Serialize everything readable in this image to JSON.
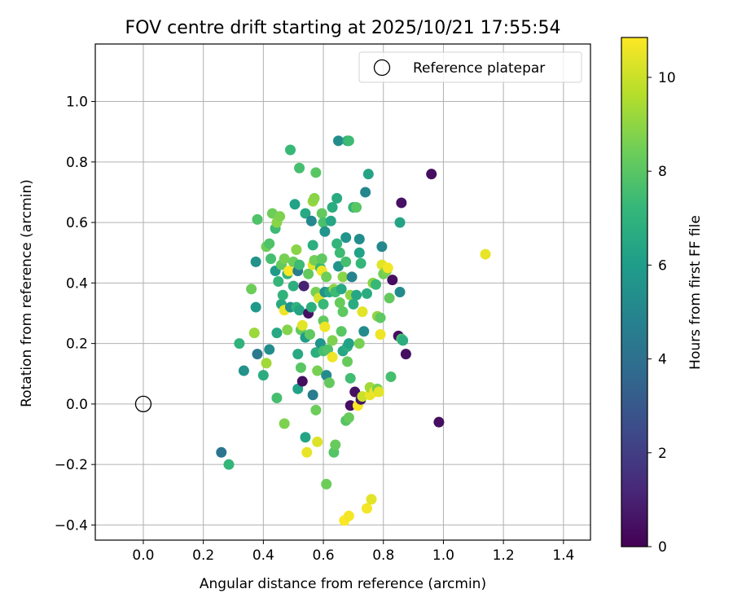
{
  "chart_data": {
    "type": "scatter",
    "title": "FOV centre drift starting at 2025/10/21 17:55:54",
    "xlabel": "Angular distance from reference (arcmin)",
    "ylabel": "Rotation from reference (arcmin)",
    "xlim": [
      -0.16,
      1.49
    ],
    "ylim": [
      -0.45,
      1.19
    ],
    "xticks": [
      0.0,
      0.2,
      0.4,
      0.6,
      0.8,
      1.0,
      1.2,
      1.4
    ],
    "xtick_labels": [
      "0.0",
      "0.2",
      "0.4",
      "0.6",
      "0.8",
      "1.0",
      "1.2",
      "1.4"
    ],
    "yticks": [
      -0.4,
      -0.2,
      0.0,
      0.2,
      0.4,
      0.6,
      0.8,
      1.0
    ],
    "ytick_labels": [
      "−0.4",
      "−0.2",
      "0.0",
      "0.2",
      "0.4",
      "0.6",
      "0.8",
      "1.0"
    ],
    "grid": true,
    "legend": {
      "position": "top-right",
      "entries": [
        "Reference platepar"
      ]
    },
    "reference_point": {
      "x": 0.0,
      "y": 0.0,
      "marker": "open-circle",
      "label": "Reference platepar"
    },
    "colorbar": {
      "label": "Hours from first FF file",
      "min": 0,
      "max": 10.85,
      "ticks": [
        0,
        2,
        4,
        6,
        8,
        10
      ],
      "tick_labels": [
        "0",
        "2",
        "4",
        "6",
        "8",
        "10"
      ],
      "colormap": "viridis"
    },
    "colormap_stops": [
      "#440154",
      "#482878",
      "#3e4989",
      "#31688e",
      "#26828e",
      "#1f9e89",
      "#35b779",
      "#6ece58",
      "#b5de2b",
      "#fde725"
    ],
    "point_color_encoding": "hours",
    "points": [
      {
        "x": 0.26,
        "y": -0.16,
        "h": 4.2
      },
      {
        "x": 0.285,
        "y": -0.2,
        "h": 7.2
      },
      {
        "x": 0.32,
        "y": 0.2,
        "h": 7.0
      },
      {
        "x": 0.335,
        "y": 0.11,
        "h": 5.5
      },
      {
        "x": 0.36,
        "y": 0.38,
        "h": 8.4
      },
      {
        "x": 0.37,
        "y": 0.235,
        "h": 9.2
      },
      {
        "x": 0.375,
        "y": 0.47,
        "h": 5.5
      },
      {
        "x": 0.38,
        "y": 0.61,
        "h": 7.8
      },
      {
        "x": 0.38,
        "y": 0.165,
        "h": 4.4
      },
      {
        "x": 0.375,
        "y": 0.32,
        "h": 5.8
      },
      {
        "x": 0.4,
        "y": 0.095,
        "h": 6.7
      },
      {
        "x": 0.41,
        "y": 0.52,
        "h": 8.4
      },
      {
        "x": 0.41,
        "y": 0.135,
        "h": 9.3
      },
      {
        "x": 0.42,
        "y": 0.53,
        "h": 7.8
      },
      {
        "x": 0.42,
        "y": 0.18,
        "h": 5.3
      },
      {
        "x": 0.425,
        "y": 0.48,
        "h": 7.6
      },
      {
        "x": 0.43,
        "y": 0.63,
        "h": 8.4
      },
      {
        "x": 0.44,
        "y": 0.58,
        "h": 7.4
      },
      {
        "x": 0.44,
        "y": 0.44,
        "h": 5.8
      },
      {
        "x": 0.445,
        "y": 0.6,
        "h": 8.9
      },
      {
        "x": 0.445,
        "y": 0.235,
        "h": 6.5
      },
      {
        "x": 0.445,
        "y": 0.02,
        "h": 7.6
      },
      {
        "x": 0.45,
        "y": 0.405,
        "h": 7.2
      },
      {
        "x": 0.455,
        "y": 0.62,
        "h": 8.7
      },
      {
        "x": 0.46,
        "y": 0.46,
        "h": 8.2
      },
      {
        "x": 0.46,
        "y": 0.33,
        "h": 6.6
      },
      {
        "x": 0.465,
        "y": 0.36,
        "h": 7.0
      },
      {
        "x": 0.47,
        "y": 0.48,
        "h": 8.6
      },
      {
        "x": 0.47,
        "y": 0.31,
        "h": 10.6
      },
      {
        "x": 0.47,
        "y": -0.065,
        "h": 8.7
      },
      {
        "x": 0.48,
        "y": 0.43,
        "h": 7.1
      },
      {
        "x": 0.48,
        "y": 0.245,
        "h": 8.8
      },
      {
        "x": 0.485,
        "y": 0.44,
        "h": 10.8
      },
      {
        "x": 0.49,
        "y": 0.84,
        "h": 7.3
      },
      {
        "x": 0.49,
        "y": 0.32,
        "h": 5.5
      },
      {
        "x": 0.5,
        "y": 0.47,
        "h": 8.4
      },
      {
        "x": 0.5,
        "y": 0.39,
        "h": 6.8
      },
      {
        "x": 0.505,
        "y": 0.66,
        "h": 6.2
      },
      {
        "x": 0.51,
        "y": 0.51,
        "h": 8.9
      },
      {
        "x": 0.51,
        "y": 0.32,
        "h": 7.0
      },
      {
        "x": 0.515,
        "y": 0.44,
        "h": 4.6
      },
      {
        "x": 0.515,
        "y": 0.165,
        "h": 6.5
      },
      {
        "x": 0.515,
        "y": 0.05,
        "h": 6.2
      },
      {
        "x": 0.52,
        "y": 0.78,
        "h": 7.6
      },
      {
        "x": 0.52,
        "y": 0.46,
        "h": 7.4
      },
      {
        "x": 0.52,
        "y": 0.31,
        "h": 6.3
      },
      {
        "x": 0.525,
        "y": 0.245,
        "h": 8.2
      },
      {
        "x": 0.525,
        "y": 0.12,
        "h": 8.0
      },
      {
        "x": 0.53,
        "y": 0.26,
        "h": 10.4
      },
      {
        "x": 0.53,
        "y": 0.075,
        "h": 0.4
      },
      {
        "x": 0.535,
        "y": 0.39,
        "h": 1.0
      },
      {
        "x": 0.54,
        "y": 0.63,
        "h": 6.5
      },
      {
        "x": 0.54,
        "y": 0.22,
        "h": 6.0
      },
      {
        "x": 0.54,
        "y": -0.11,
        "h": 6.3
      },
      {
        "x": 0.545,
        "y": -0.16,
        "h": 10.5
      },
      {
        "x": 0.55,
        "y": 0.3,
        "h": 0.5
      },
      {
        "x": 0.55,
        "y": 0.43,
        "h": 8.2
      },
      {
        "x": 0.555,
        "y": 0.23,
        "h": 8.1
      },
      {
        "x": 0.56,
        "y": 0.605,
        "h": 5.1
      },
      {
        "x": 0.56,
        "y": 0.32,
        "h": 6.8
      },
      {
        "x": 0.565,
        "y": 0.46,
        "h": 10.4
      },
      {
        "x": 0.565,
        "y": 0.67,
        "h": 9.1
      },
      {
        "x": 0.565,
        "y": 0.525,
        "h": 6.8
      },
      {
        "x": 0.565,
        "y": 0.03,
        "h": 4.5
      },
      {
        "x": 0.57,
        "y": 0.68,
        "h": 8.9
      },
      {
        "x": 0.57,
        "y": 0.475,
        "h": 8.5
      },
      {
        "x": 0.575,
        "y": 0.37,
        "h": 8.6
      },
      {
        "x": 0.575,
        "y": 0.765,
        "h": 8.0
      },
      {
        "x": 0.575,
        "y": 0.17,
        "h": 6.8
      },
      {
        "x": 0.575,
        "y": -0.02,
        "h": 8.4
      },
      {
        "x": 0.58,
        "y": 0.11,
        "h": 8.6
      },
      {
        "x": 0.58,
        "y": -0.125,
        "h": 10.3
      },
      {
        "x": 0.585,
        "y": 0.35,
        "h": 10.2
      },
      {
        "x": 0.59,
        "y": 0.45,
        "h": 7.3
      },
      {
        "x": 0.59,
        "y": 0.2,
        "h": 5.6
      },
      {
        "x": 0.595,
        "y": 0.44,
        "h": 10.6
      },
      {
        "x": 0.595,
        "y": 0.63,
        "h": 8.2
      },
      {
        "x": 0.595,
        "y": 0.48,
        "h": 8.1
      },
      {
        "x": 0.6,
        "y": 0.33,
        "h": 7.3
      },
      {
        "x": 0.6,
        "y": 0.275,
        "h": 8.2
      },
      {
        "x": 0.6,
        "y": 0.6,
        "h": 7.7
      },
      {
        "x": 0.6,
        "y": 0.175,
        "h": 7.6
      },
      {
        "x": 0.605,
        "y": 0.57,
        "h": 5.6
      },
      {
        "x": 0.605,
        "y": 0.37,
        "h": 5.5
      },
      {
        "x": 0.605,
        "y": 0.255,
        "h": 10.6
      },
      {
        "x": 0.61,
        "y": -0.265,
        "h": 8.4
      },
      {
        "x": 0.61,
        "y": 0.42,
        "h": 8.4
      },
      {
        "x": 0.61,
        "y": 0.095,
        "h": 5.2
      },
      {
        "x": 0.615,
        "y": 0.18,
        "h": 7.8
      },
      {
        "x": 0.62,
        "y": 0.37,
        "h": 6.5
      },
      {
        "x": 0.62,
        "y": 0.07,
        "h": 8.2
      },
      {
        "x": 0.625,
        "y": 0.605,
        "h": 6.4
      },
      {
        "x": 0.63,
        "y": 0.65,
        "h": 6.7
      },
      {
        "x": 0.63,
        "y": 0.21,
        "h": 8.7
      },
      {
        "x": 0.63,
        "y": 0.155,
        "h": 10.6
      },
      {
        "x": 0.635,
        "y": 0.38,
        "h": 9.0
      },
      {
        "x": 0.635,
        "y": -0.16,
        "h": 7.9
      },
      {
        "x": 0.64,
        "y": 0.37,
        "h": 7.4
      },
      {
        "x": 0.64,
        "y": -0.135,
        "h": 8.3
      },
      {
        "x": 0.645,
        "y": 0.68,
        "h": 6.6
      },
      {
        "x": 0.645,
        "y": 0.53,
        "h": 7.1
      },
      {
        "x": 0.65,
        "y": 0.87,
        "h": 5.3
      },
      {
        "x": 0.65,
        "y": 0.455,
        "h": 5.6
      },
      {
        "x": 0.655,
        "y": 0.335,
        "h": 8.3
      },
      {
        "x": 0.655,
        "y": 0.5,
        "h": 7.4
      },
      {
        "x": 0.66,
        "y": 0.38,
        "h": 6.5
      },
      {
        "x": 0.66,
        "y": 0.24,
        "h": 8.0
      },
      {
        "x": 0.665,
        "y": 0.42,
        "h": 8.9
      },
      {
        "x": 0.665,
        "y": 0.305,
        "h": 8.1
      },
      {
        "x": 0.665,
        "y": 0.175,
        "h": 6.4
      },
      {
        "x": 0.67,
        "y": -0.385,
        "h": 10.8
      },
      {
        "x": 0.675,
        "y": 0.55,
        "h": 5.6
      },
      {
        "x": 0.675,
        "y": 0.47,
        "h": 7.6
      },
      {
        "x": 0.675,
        "y": -0.055,
        "h": 7.9
      },
      {
        "x": 0.68,
        "y": 0.87,
        "h": 6.6
      },
      {
        "x": 0.68,
        "y": 0.19,
        "h": 6.8
      },
      {
        "x": 0.68,
        "y": 0.14,
        "h": 8.3
      },
      {
        "x": 0.685,
        "y": 0.87,
        "h": 7.4
      },
      {
        "x": 0.685,
        "y": 0.2,
        "h": 6.2
      },
      {
        "x": 0.685,
        "y": -0.045,
        "h": 8.3
      },
      {
        "x": 0.685,
        "y": -0.37,
        "h": 10.7
      },
      {
        "x": 0.69,
        "y": 0.085,
        "h": 7.5
      },
      {
        "x": 0.69,
        "y": 0.36,
        "h": 9.0
      },
      {
        "x": 0.69,
        "y": -0.005,
        "h": 0.4
      },
      {
        "x": 0.695,
        "y": 0.42,
        "h": 4.8
      },
      {
        "x": 0.7,
        "y": 0.65,
        "h": 7.1
      },
      {
        "x": 0.7,
        "y": 0.33,
        "h": 6.7
      },
      {
        "x": 0.705,
        "y": 0.04,
        "h": 0.5
      },
      {
        "x": 0.71,
        "y": 0.65,
        "h": 8.0
      },
      {
        "x": 0.71,
        "y": 0.36,
        "h": 6.4
      },
      {
        "x": 0.715,
        "y": -0.005,
        "h": 10.8
      },
      {
        "x": 0.72,
        "y": 0.2,
        "h": 8.6
      },
      {
        "x": 0.72,
        "y": 0.545,
        "h": 5.3
      },
      {
        "x": 0.72,
        "y": 0.5,
        "h": 6.2
      },
      {
        "x": 0.725,
        "y": 0.465,
        "h": 7.2
      },
      {
        "x": 0.725,
        "y": 0.015,
        "h": 0.7
      },
      {
        "x": 0.73,
        "y": 0.025,
        "h": 10.0
      },
      {
        "x": 0.73,
        "y": 0.305,
        "h": 10.4
      },
      {
        "x": 0.735,
        "y": 0.24,
        "h": 5.2
      },
      {
        "x": 0.74,
        "y": 0.7,
        "h": 5.0
      },
      {
        "x": 0.745,
        "y": 0.365,
        "h": 6.7
      },
      {
        "x": 0.745,
        "y": -0.345,
        "h": 10.7
      },
      {
        "x": 0.75,
        "y": 0.76,
        "h": 6.3
      },
      {
        "x": 0.755,
        "y": 0.03,
        "h": 10.5
      },
      {
        "x": 0.755,
        "y": 0.055,
        "h": 9.3
      },
      {
        "x": 0.76,
        "y": -0.315,
        "h": 10.4
      },
      {
        "x": 0.765,
        "y": 0.4,
        "h": 8.9
      },
      {
        "x": 0.77,
        "y": 0.04,
        "h": 10.6
      },
      {
        "x": 0.775,
        "y": 0.395,
        "h": 7.3
      },
      {
        "x": 0.78,
        "y": 0.05,
        "h": 8.6
      },
      {
        "x": 0.78,
        "y": 0.29,
        "h": 9.0
      },
      {
        "x": 0.785,
        "y": 0.04,
        "h": 10.4
      },
      {
        "x": 0.79,
        "y": 0.23,
        "h": 10.6
      },
      {
        "x": 0.79,
        "y": 0.285,
        "h": 8.1
      },
      {
        "x": 0.795,
        "y": 0.46,
        "h": 10.4
      },
      {
        "x": 0.795,
        "y": 0.52,
        "h": 5.1
      },
      {
        "x": 0.8,
        "y": 0.43,
        "h": 8.5
      },
      {
        "x": 0.81,
        "y": 0.44,
        "h": 8.7
      },
      {
        "x": 0.815,
        "y": 0.45,
        "h": 10.7
      },
      {
        "x": 0.82,
        "y": 0.35,
        "h": 8.2
      },
      {
        "x": 0.825,
        "y": 0.09,
        "h": 7.6
      },
      {
        "x": 0.83,
        "y": 0.41,
        "h": 0.4
      },
      {
        "x": 0.85,
        "y": 0.225,
        "h": 0.4
      },
      {
        "x": 0.855,
        "y": 0.6,
        "h": 6.3
      },
      {
        "x": 0.855,
        "y": 0.37,
        "h": 5.2
      },
      {
        "x": 0.86,
        "y": 0.215,
        "h": 7.6
      },
      {
        "x": 0.86,
        "y": 0.665,
        "h": 0.5
      },
      {
        "x": 0.865,
        "y": 0.21,
        "h": 6.8
      },
      {
        "x": 0.875,
        "y": 0.165,
        "h": 0.4
      },
      {
        "x": 0.96,
        "y": 0.76,
        "h": 0.4
      },
      {
        "x": 0.985,
        "y": -0.06,
        "h": 0.4
      },
      {
        "x": 1.14,
        "y": 0.495,
        "h": 10.5
      }
    ]
  }
}
